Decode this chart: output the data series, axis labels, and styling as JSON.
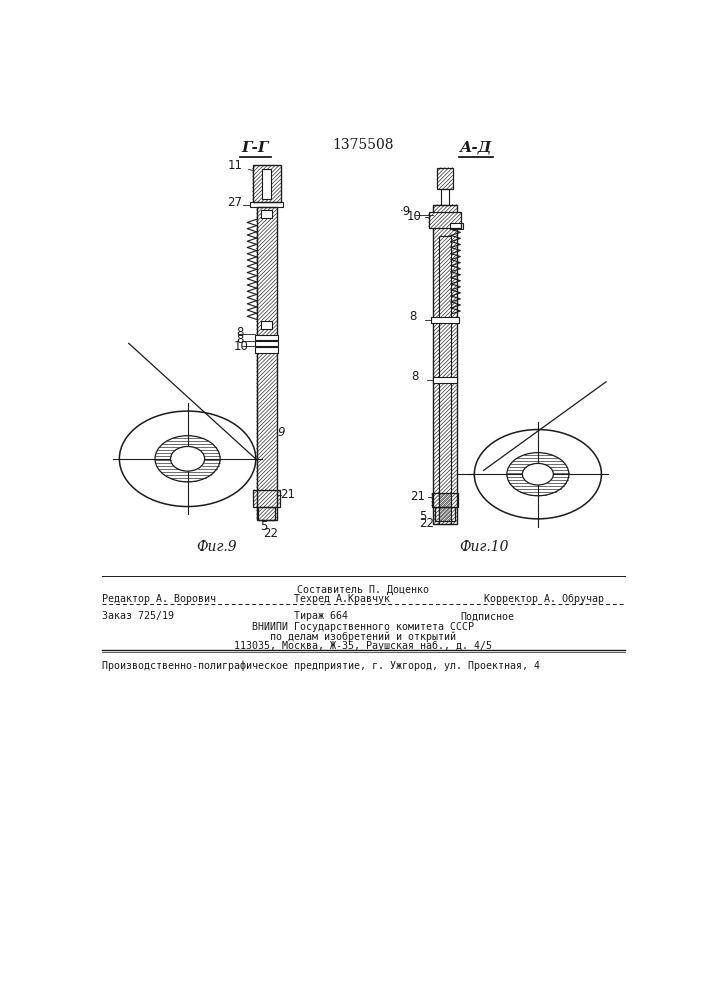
{
  "title": "1375508",
  "fig9_label": "Г-Г",
  "fig10_label": "А-Д",
  "fig9_caption": "Фиг.9",
  "fig10_caption": "Фиг.10",
  "bg_color": "#ffffff",
  "line_color": "#1a1a1a",
  "footer_line1": "Составитель П. Доценко",
  "footer_line2_left": "Редактор А. Ворович",
  "footer_line2_mid": "Техред А.Кравчук",
  "footer_line2_right": "Корректор А. Обручар",
  "footer_line3_left": "Заказ 725/19",
  "footer_line3_mid": "Тираж 664",
  "footer_line3_right": "Подписное",
  "footer_line4": "ВНИИПИ Государственного комитета СССР",
  "footer_line5": "по делам изобретений и открытий",
  "footer_line6": "113035, Москва, Ж-35, Раушская наб., д. 4/5",
  "footer_line7": "Производственно-полиграфическое предприятие, г. Ужгород, ул. Проектная, 4"
}
